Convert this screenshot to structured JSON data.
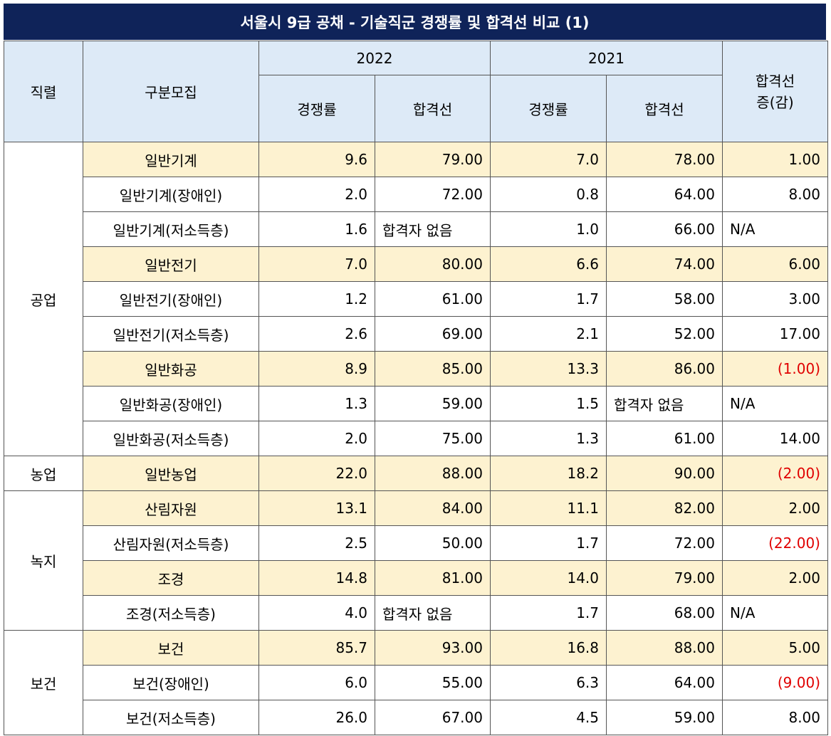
{
  "title": "서울시 9급 공채 - 기술직군 경쟁률 및 합격선 비교 (1)",
  "headers": {
    "category": "직렬",
    "recruit": "구분모집",
    "year2022": "2022",
    "year2021": "2021",
    "rate": "경쟁률",
    "cutoff": "합격선",
    "diff": "합격선\n증(감)"
  },
  "groups": [
    {
      "name": "공업",
      "rows": [
        {
          "recruit": "일반기계",
          "r22": "9.6",
          "c22": "79.00",
          "r21": "7.0",
          "c21": "78.00",
          "diff": "1.00",
          "hl": true
        },
        {
          "recruit": "일반기계(장애인)",
          "r22": "2.0",
          "c22": "72.00",
          "r21": "0.8",
          "c21": "64.00",
          "diff": "8.00"
        },
        {
          "recruit": "일반기계(저소득층)",
          "r22": "1.6",
          "c22": "합격자 없음",
          "r21": "1.0",
          "c21": "66.00",
          "diff": "N/A"
        },
        {
          "recruit": "일반전기",
          "r22": "7.0",
          "c22": "80.00",
          "r21": "6.6",
          "c21": "74.00",
          "diff": "6.00",
          "hl": true
        },
        {
          "recruit": "일반전기(장애인)",
          "r22": "1.2",
          "c22": "61.00",
          "r21": "1.7",
          "c21": "58.00",
          "diff": "3.00"
        },
        {
          "recruit": "일반전기(저소득층)",
          "r22": "2.6",
          "c22": "69.00",
          "r21": "2.1",
          "c21": "52.00",
          "diff": "17.00"
        },
        {
          "recruit": "일반화공",
          "r22": "8.9",
          "c22": "85.00",
          "r21": "13.3",
          "c21": "86.00",
          "diff": "(1.00)",
          "hl": true
        },
        {
          "recruit": "일반화공(장애인)",
          "r22": "1.3",
          "c22": "59.00",
          "r21": "1.5",
          "c21": "합격자 없음",
          "diff": "N/A"
        },
        {
          "recruit": "일반화공(저소득층)",
          "r22": "2.0",
          "c22": "75.00",
          "r21": "1.3",
          "c21": "61.00",
          "diff": "14.00"
        }
      ]
    },
    {
      "name": "농업",
      "rows": [
        {
          "recruit": "일반농업",
          "r22": "22.0",
          "c22": "88.00",
          "r21": "18.2",
          "c21": "90.00",
          "diff": "(2.00)",
          "hl": true
        }
      ]
    },
    {
      "name": "녹지",
      "rows": [
        {
          "recruit": "산림자원",
          "r22": "13.1",
          "c22": "84.00",
          "r21": "11.1",
          "c21": "82.00",
          "diff": "2.00",
          "hl": true
        },
        {
          "recruit": "산림자원(저소득층)",
          "r22": "2.5",
          "c22": "50.00",
          "r21": "1.7",
          "c21": "72.00",
          "diff": "(22.00)"
        },
        {
          "recruit": "조경",
          "r22": "14.8",
          "c22": "81.00",
          "r21": "14.0",
          "c21": "79.00",
          "diff": "2.00",
          "hl": true
        },
        {
          "recruit": "조경(저소득층)",
          "r22": "4.0",
          "c22": "합격자 없음",
          "r21": "1.7",
          "c21": "68.00",
          "diff": "N/A"
        }
      ]
    },
    {
      "name": "보건",
      "rows": [
        {
          "recruit": "보건",
          "r22": "85.7",
          "c22": "93.00",
          "r21": "16.8",
          "c21": "88.00",
          "diff": "5.00",
          "hl": true
        },
        {
          "recruit": "보건(장애인)",
          "r22": "6.0",
          "c22": "55.00",
          "r21": "6.3",
          "c21": "64.00",
          "diff": "(9.00)"
        },
        {
          "recruit": "보건(저소득층)",
          "r22": "26.0",
          "c22": "67.00",
          "r21": "4.5",
          "c21": "59.00",
          "diff": "8.00"
        }
      ]
    }
  ],
  "colors": {
    "title_bg": "#0f2359",
    "header_bg": "#ddeaf7",
    "highlight_bg": "#fdf2d0",
    "negative": "#e00000"
  }
}
